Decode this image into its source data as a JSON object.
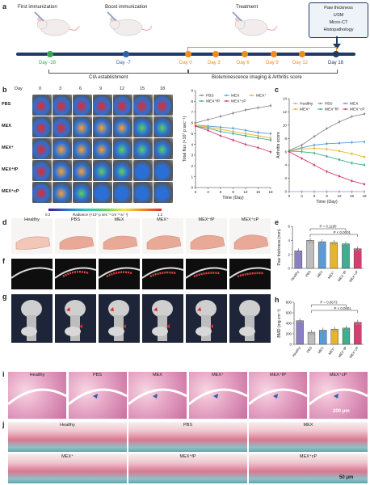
{
  "panels": {
    "a": {
      "label": "a",
      "events_top": [
        "First immunization",
        "Boost immunization",
        "Treatment"
      ],
      "outcome_box": [
        "Paw thickness",
        "USM",
        "Micro-CT",
        "Histopathology"
      ],
      "days": [
        "Day -28",
        "Day -7",
        "Day 0",
        "Day 3",
        "Day 6",
        "Day 9",
        "Day 12",
        "Day 18"
      ],
      "phases": [
        "CIA establishment",
        "Bioluminescence imaging & Arthritis score"
      ],
      "colors": {
        "green": "#3aa655",
        "blue": "#2f62a8",
        "orange": "#f08a24",
        "navy": "#1f3a66"
      }
    },
    "b": {
      "label": "b",
      "day_header": "Day",
      "days": [
        "0",
        "3",
        "6",
        "9",
        "12",
        "15",
        "18"
      ],
      "groups": [
        "PBS",
        "MEX",
        "MEX⁺",
        "MEX⁺fP",
        "MEX⁺cP"
      ],
      "colorbar_label": "Radiance (×10⁷ p sec⁻¹ cm⁻² sr⁻¹)",
      "colorbar_min": "0.2",
      "colorbar_max": "1.2"
    },
    "c": {
      "label": "c"
    },
    "d": {
      "label": "d",
      "groups": [
        "Healthy",
        "PBS",
        "MEX",
        "MEX⁺",
        "MEX⁺fP",
        "MEX⁺cP"
      ]
    },
    "e": {
      "label": "e"
    },
    "f": {
      "label": "f"
    },
    "g": {
      "label": "g"
    },
    "h": {
      "label": "h"
    },
    "i": {
      "label": "i",
      "groups": [
        "Healthy",
        "PBS",
        "MEX",
        "MEX⁺",
        "MEX⁺fP",
        "MEX⁺cP"
      ],
      "scale_bar": "200 μm"
    },
    "j": {
      "label": "j",
      "groups_row1": [
        "Healthy",
        "PBS",
        "MEX"
      ],
      "groups_row2": [
        "MEX⁺",
        "MEX⁺fP",
        "MEX⁺cP"
      ],
      "scale_bar": "50 μm"
    }
  },
  "chart_data": [
    {
      "id": "flux",
      "type": "line",
      "ylabel": "Total flux (×10⁷ p sec⁻¹)",
      "xlabel": "Time (Day)",
      "x": [
        0,
        3,
        6,
        9,
        12,
        15,
        18
      ],
      "xlim": [
        0,
        18
      ],
      "ylim": [
        0,
        9
      ],
      "yticks": [
        0,
        1,
        2,
        3,
        4,
        5,
        6,
        7,
        8,
        9
      ],
      "legend": "top",
      "series": [
        {
          "name": "PBS",
          "color": "#8c8c8c",
          "values": [
            6.0,
            6.3,
            6.6,
            6.9,
            7.2,
            7.4,
            7.6
          ]
        },
        {
          "name": "MEX",
          "color": "#5a9bd5",
          "values": [
            5.8,
            5.7,
            5.6,
            5.5,
            5.3,
            5.1,
            5.0
          ]
        },
        {
          "name": "MEX⁺",
          "color": "#e5b52c",
          "values": [
            5.8,
            5.6,
            5.4,
            5.2,
            5.0,
            4.8,
            4.6
          ]
        },
        {
          "name": "MEX⁺fP",
          "color": "#3fae8e",
          "values": [
            5.7,
            5.5,
            5.2,
            5.0,
            4.8,
            4.6,
            4.4
          ]
        },
        {
          "name": "MEX⁺cP",
          "color": "#d1406e",
          "values": [
            5.7,
            5.3,
            4.8,
            4.4,
            4.0,
            3.7,
            3.3
          ]
        }
      ]
    },
    {
      "id": "arthritis",
      "type": "line",
      "ylabel": "Arthritis score",
      "xlabel": "Time (Day)",
      "x": [
        0,
        3,
        6,
        9,
        12,
        15,
        18
      ],
      "xlim": [
        0,
        18
      ],
      "ylim": [
        0,
        14
      ],
      "yticks": [
        0,
        2,
        4,
        6,
        8,
        10,
        12,
        14
      ],
      "legend": "top",
      "series": [
        {
          "name": "Healthy",
          "color": "#b7a6d9",
          "values": [
            0,
            0,
            0,
            0,
            0,
            0,
            0
          ]
        },
        {
          "name": "PBS",
          "color": "#8c8c8c",
          "values": [
            6.2,
            7.0,
            8.3,
            9.5,
            10.5,
            11.3,
            11.7
          ]
        },
        {
          "name": "MEX",
          "color": "#5a9bd5",
          "values": [
            6.1,
            6.6,
            7.0,
            7.2,
            7.3,
            7.4,
            7.5
          ]
        },
        {
          "name": "MEX⁺",
          "color": "#e5b52c",
          "values": [
            6.1,
            6.4,
            6.5,
            6.4,
            6.1,
            5.7,
            5.2
          ]
        },
        {
          "name": "MEX⁺fP",
          "color": "#3fae8e",
          "values": [
            6.1,
            6.0,
            5.8,
            5.3,
            4.8,
            4.3,
            4.0
          ]
        },
        {
          "name": "MEX⁺cP",
          "color": "#d1406e",
          "values": [
            6.0,
            5.0,
            4.0,
            3.0,
            2.3,
            1.6,
            1.1
          ]
        }
      ]
    },
    {
      "id": "paw",
      "type": "bar",
      "ylabel": "Paw thickness (mm)",
      "categories": [
        "Healthy",
        "PBS",
        "MEX",
        "MEX⁺",
        "MEX⁺fP",
        "MEX⁺cP"
      ],
      "values": [
        2.5,
        4.0,
        3.8,
        3.7,
        3.5,
        2.8
      ],
      "colors": [
        "#8a7fc4",
        "#bdbdbd",
        "#5a9bd5",
        "#e5b52c",
        "#3fae8e",
        "#d1406e"
      ],
      "ylim": [
        0,
        6
      ],
      "yticks": [
        0,
        2,
        4,
        6
      ],
      "annotations": [
        "P = 0.1190",
        "P < 0.0001"
      ]
    },
    {
      "id": "bmd",
      "type": "bar",
      "ylabel": "BMD (mg cm⁻³)",
      "categories": [
        "Healthy",
        "PBS",
        "MEX",
        "MEX⁺",
        "MEX⁺fP",
        "MEX⁺cP"
      ],
      "values": [
        450,
        230,
        270,
        290,
        310,
        420
      ],
      "colors": [
        "#8a7fc4",
        "#bdbdbd",
        "#5a9bd5",
        "#e5b52c",
        "#3fae8e",
        "#d1406e"
      ],
      "ylim": [
        0,
        800
      ],
      "yticks": [
        0,
        200,
        400,
        600,
        800
      ],
      "annotations": [
        "P = 0.0673",
        "P < 0.0001"
      ]
    }
  ]
}
